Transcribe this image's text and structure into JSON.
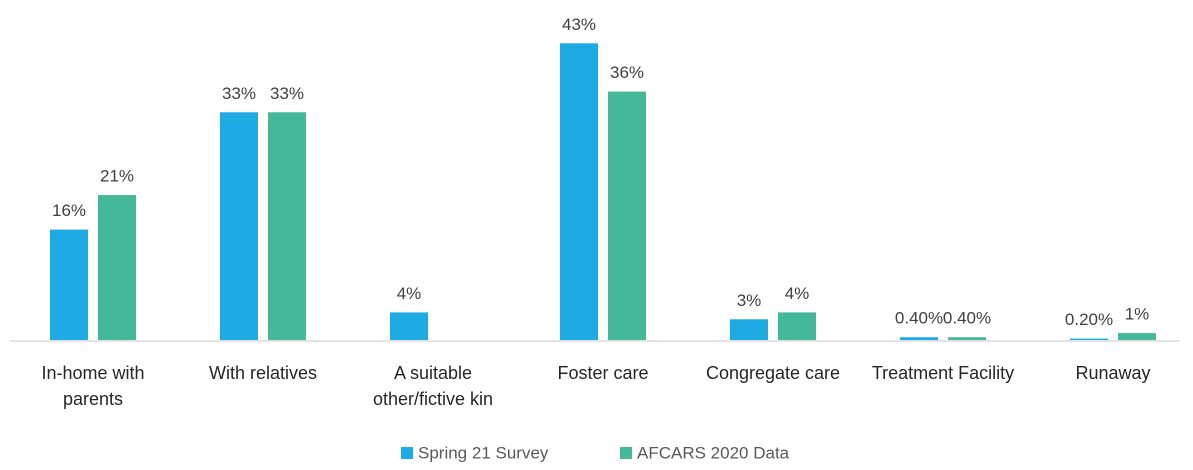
{
  "chart_data": {
    "type": "bar",
    "categories": [
      "In-home with parents",
      "With relatives",
      "A suitable other/fictive kin",
      "Foster care",
      "Congregate care",
      "Treatment Facility",
      "Runaway"
    ],
    "series": [
      {
        "name": "Spring 21 Survey",
        "color": "#1eabe3",
        "values": [
          16,
          33,
          4,
          43,
          3,
          0.4,
          0.2
        ],
        "value_labels": [
          "16%",
          "33%",
          "4%",
          "43%",
          "3%",
          "0.40%",
          "0.20%"
        ]
      },
      {
        "name": "AFCARS 2020 Data",
        "color": "#43b997",
        "values": [
          21,
          33,
          null,
          36,
          4,
          0.4,
          1
        ],
        "value_labels": [
          "21%",
          "33%",
          null,
          "36%",
          "4%",
          "0.40%",
          "1%"
        ]
      }
    ],
    "legend": "bottom"
  }
}
